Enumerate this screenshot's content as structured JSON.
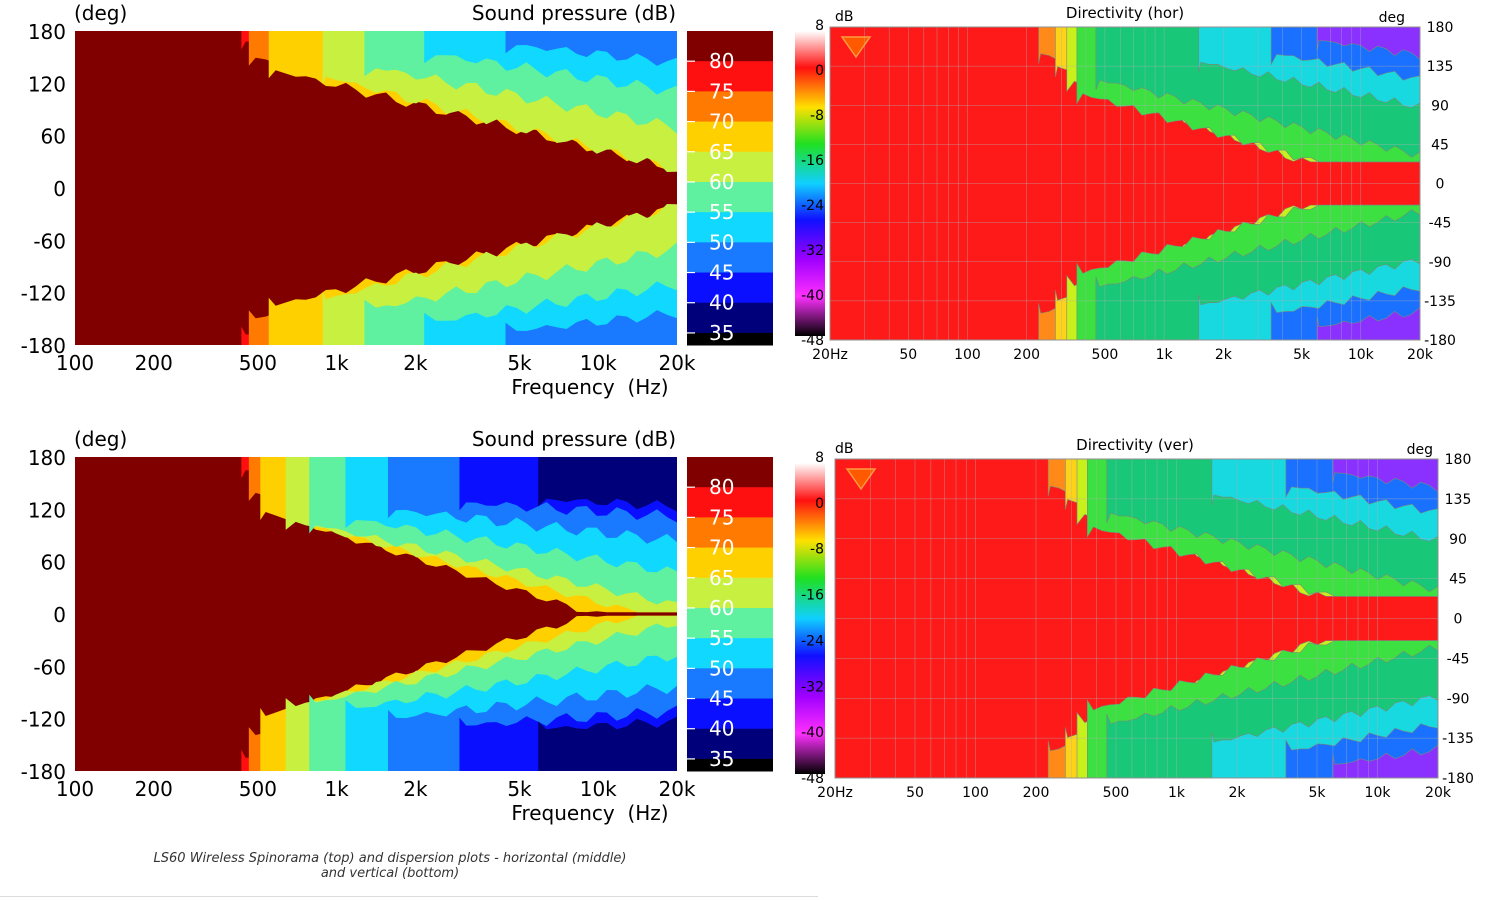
{
  "chart_data": [
    {
      "type": "heatmap",
      "title": "Sound pressure  (dB)",
      "ylabel": "(deg)",
      "xlabel": "Frequency  (Hz)",
      "x_scale": "log",
      "xlim": [
        100,
        20000
      ],
      "ylim": [
        -180,
        180
      ],
      "x_ticks": [
        100,
        200,
        500,
        1000,
        2000,
        5000,
        10000,
        20000
      ],
      "x_tick_labels": [
        "100",
        "200",
        "500",
        "1k",
        "2k",
        "5k",
        "10k",
        "20k"
      ],
      "y_ticks": [
        180,
        120,
        60,
        0,
        -60,
        -120,
        -180
      ],
      "y_tick_labels": [
        "180",
        "120",
        "60",
        "0",
        "-60",
        "-120",
        "-180"
      ],
      "legend_levels": [
        "80",
        "75",
        "70",
        "65",
        "60",
        "55",
        "50",
        "45",
        "40",
        "35"
      ],
      "legend_colors": [
        "#800000",
        "#ff1010",
        "#ff7a00",
        "#ffd000",
        "#c8f040",
        "#5ff0a0",
        "#10d8ff",
        "#1a7aff",
        "#0a10ff",
        "#00007a",
        "#000000"
      ],
      "grid": false
    },
    {
      "type": "heatmap",
      "title": "Directivity (hor)",
      "ylabel": "deg",
      "colorbar_label": "dB",
      "x_scale": "log",
      "xlim": [
        20,
        20000
      ],
      "ylim": [
        -180,
        180
      ],
      "x_tick_labels": [
        "20Hz",
        "50",
        "100",
        "200",
        "500",
        "1k",
        "2k",
        "5k",
        "10k",
        "20k"
      ],
      "x_ticks": [
        20,
        50,
        100,
        200,
        500,
        1000,
        2000,
        5000,
        10000,
        20000
      ],
      "y_tick_labels": [
        "180",
        "135",
        "90",
        "45",
        "0",
        "-45",
        "-90",
        "-135",
        "-180"
      ],
      "colorbar_ticks": [
        "8",
        "0",
        "-8",
        "-16",
        "-24",
        "-32",
        "-40",
        "-48"
      ],
      "grid": true
    },
    {
      "type": "heatmap",
      "title": "Sound pressure  (dB)",
      "ylabel": "(deg)",
      "xlabel": "Frequency  (Hz)",
      "x_scale": "log",
      "xlim": [
        100,
        20000
      ],
      "ylim": [
        -180,
        180
      ],
      "x_ticks": [
        100,
        200,
        500,
        1000,
        2000,
        5000,
        10000,
        20000
      ],
      "x_tick_labels": [
        "100",
        "200",
        "500",
        "1k",
        "2k",
        "5k",
        "10k",
        "20k"
      ],
      "y_ticks": [
        180,
        120,
        60,
        0,
        -60,
        -120,
        -180
      ],
      "y_tick_labels": [
        "180",
        "120",
        "60",
        "0",
        "-60",
        "-120",
        "-180"
      ],
      "legend_levels": [
        "80",
        "75",
        "70",
        "65",
        "60",
        "55",
        "50",
        "45",
        "40",
        "35"
      ],
      "legend_colors": [
        "#800000",
        "#ff1010",
        "#ff7a00",
        "#ffd000",
        "#c8f040",
        "#5ff0a0",
        "#10d8ff",
        "#1a7aff",
        "#0a10ff",
        "#00007a",
        "#000000"
      ],
      "grid": false
    },
    {
      "type": "heatmap",
      "title": "Directivity (ver)",
      "ylabel": "deg",
      "colorbar_label": "dB",
      "x_scale": "log",
      "xlim": [
        20,
        20000
      ],
      "ylim": [
        -180,
        180
      ],
      "x_tick_labels": [
        "20Hz",
        "50",
        "100",
        "200",
        "500",
        "1k",
        "2k",
        "5k",
        "10k",
        "20k"
      ],
      "x_ticks": [
        20,
        50,
        100,
        200,
        500,
        1000,
        2000,
        5000,
        10000,
        20000
      ],
      "y_tick_labels": [
        "180",
        "135",
        "90",
        "45",
        "0",
        "-45",
        "-90",
        "-135",
        "-180"
      ],
      "colorbar_ticks": [
        "8",
        "0",
        "-8",
        "-16",
        "-24",
        "-32",
        "-40",
        "-48"
      ],
      "grid": true
    }
  ],
  "caption": {
    "line1": "LS60 Wireless Spinorama (top) and dispersion plots - horizontal (middle)",
    "line2": "and vertical (bottom)"
  }
}
